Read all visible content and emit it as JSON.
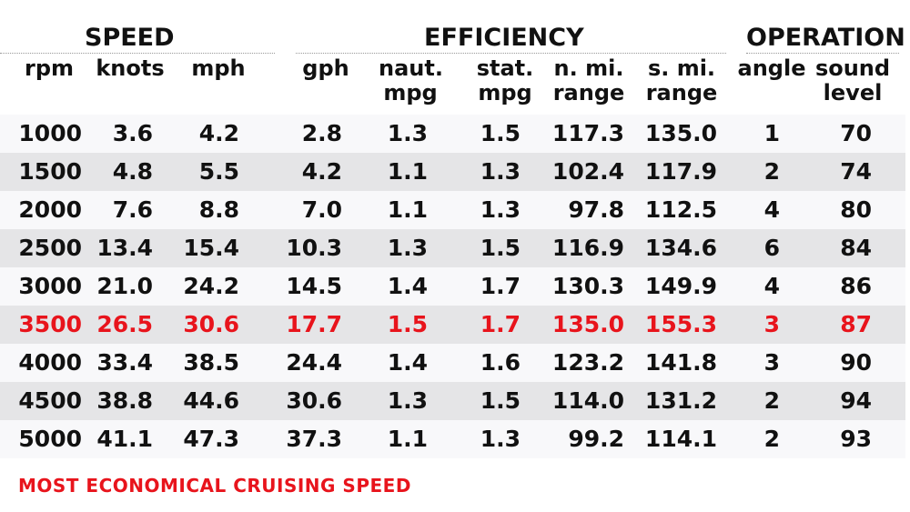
{
  "groups": {
    "speed": "SPEED",
    "efficiency": "EFFICIENCY",
    "operation": "OPERATION"
  },
  "columns": [
    {
      "l1": "",
      "l2": "rpm"
    },
    {
      "l1": "",
      "l2": "knots"
    },
    {
      "l1": "",
      "l2": "mph"
    },
    {
      "l1": "",
      "l2": "gph"
    },
    {
      "l1": "naut.",
      "l2": "mpg"
    },
    {
      "l1": "stat.",
      "l2": "mpg"
    },
    {
      "l1": "n. mi.",
      "l2": "range"
    },
    {
      "l1": "s. mi.",
      "l2": "range"
    },
    {
      "l1": "",
      "l2": "angle"
    },
    {
      "l1": "sound",
      "l2": "level"
    }
  ],
  "rows": [
    [
      "1000",
      "3.6",
      "4.2",
      "2.8",
      "1.3",
      "1.5",
      "117.3",
      "135.0",
      "1",
      "70"
    ],
    [
      "1500",
      "4.8",
      "5.5",
      "4.2",
      "1.1",
      "1.3",
      "102.4",
      "117.9",
      "2",
      "74"
    ],
    [
      "2000",
      "7.6",
      "8.8",
      "7.0",
      "1.1",
      "1.3",
      "97.8",
      "112.5",
      "4",
      "80"
    ],
    [
      "2500",
      "13.4",
      "15.4",
      "10.3",
      "1.3",
      "1.5",
      "116.9",
      "134.6",
      "6",
      "84"
    ],
    [
      "3000",
      "21.0",
      "24.2",
      "14.5",
      "1.4",
      "1.7",
      "130.3",
      "149.9",
      "4",
      "86"
    ],
    [
      "3500",
      "26.5",
      "30.6",
      "17.7",
      "1.5",
      "1.7",
      "135.0",
      "155.3",
      "3",
      "87"
    ],
    [
      "4000",
      "33.4",
      "38.5",
      "24.4",
      "1.4",
      "1.6",
      "123.2",
      "141.8",
      "3",
      "90"
    ],
    [
      "4500",
      "38.8",
      "44.6",
      "30.6",
      "1.3",
      "1.5",
      "114.0",
      "131.2",
      "2",
      "94"
    ],
    [
      "5000",
      "41.1",
      "47.3",
      "37.3",
      "1.1",
      "1.3",
      "99.2",
      "114.1",
      "2",
      "93"
    ]
  ],
  "footnote": "MOST ECONOMICAL CRUISING SPEED",
  "colors": {
    "highlight": "#e8141c",
    "row_light": "#f8f8fa",
    "row_dark": "#e5e5e7"
  },
  "chart_data": {
    "type": "table",
    "title": "",
    "column_groups": [
      {
        "name": "SPEED",
        "columns": [
          "rpm",
          "knots",
          "mph"
        ]
      },
      {
        "name": "EFFICIENCY",
        "columns": [
          "gph",
          "naut. mpg",
          "stat. mpg",
          "n. mi. range",
          "s. mi. range"
        ]
      },
      {
        "name": "OPERATION",
        "columns": [
          "angle",
          "sound level"
        ]
      }
    ],
    "columns": [
      "rpm",
      "knots",
      "mph",
      "gph",
      "naut. mpg",
      "stat. mpg",
      "n. mi. range",
      "s. mi. range",
      "angle",
      "sound level"
    ],
    "rows": [
      [
        1000,
        3.6,
        4.2,
        2.8,
        1.3,
        1.5,
        117.3,
        135.0,
        1,
        70
      ],
      [
        1500,
        4.8,
        5.5,
        4.2,
        1.1,
        1.3,
        102.4,
        117.9,
        2,
        74
      ],
      [
        2000,
        7.6,
        8.8,
        7.0,
        1.1,
        1.3,
        97.8,
        112.5,
        4,
        80
      ],
      [
        2500,
        13.4,
        15.4,
        10.3,
        1.3,
        1.5,
        116.9,
        134.6,
        6,
        84
      ],
      [
        3000,
        21.0,
        24.2,
        14.5,
        1.4,
        1.7,
        130.3,
        149.9,
        4,
        86
      ],
      [
        3500,
        26.5,
        30.6,
        17.7,
        1.5,
        1.7,
        135.0,
        155.3,
        3,
        87
      ],
      [
        4000,
        33.4,
        38.5,
        24.4,
        1.4,
        1.6,
        123.2,
        141.8,
        3,
        90
      ],
      [
        4500,
        38.8,
        44.6,
        30.6,
        1.3,
        1.5,
        114.0,
        131.2,
        2,
        94
      ],
      [
        5000,
        41.1,
        47.3,
        37.3,
        1.1,
        1.3,
        99.2,
        114.1,
        2,
        93
      ]
    ],
    "highlighted_row": 5,
    "annotation": "MOST ECONOMICAL CRUISING SPEED"
  }
}
